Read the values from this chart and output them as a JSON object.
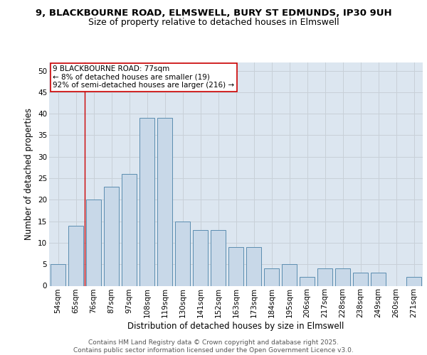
{
  "title1": "9, BLACKBOURNE ROAD, ELMSWELL, BURY ST EDMUNDS, IP30 9UH",
  "title2": "Size of property relative to detached houses in Elmswell",
  "xlabel": "Distribution of detached houses by size in Elmswell",
  "ylabel": "Number of detached properties",
  "categories": [
    "54sqm",
    "65sqm",
    "76sqm",
    "87sqm",
    "97sqm",
    "108sqm",
    "119sqm",
    "130sqm",
    "141sqm",
    "152sqm",
    "163sqm",
    "173sqm",
    "184sqm",
    "195sqm",
    "206sqm",
    "217sqm",
    "228sqm",
    "238sqm",
    "249sqm",
    "260sqm",
    "271sqm"
  ],
  "values": [
    5,
    14,
    20,
    23,
    26,
    39,
    39,
    15,
    13,
    13,
    9,
    9,
    4,
    5,
    2,
    4,
    4,
    3,
    3,
    0,
    2
  ],
  "bar_color": "#c8d8e8",
  "bar_edge_color": "#5b8db0",
  "vline_color": "#cc0000",
  "annotation_line1": "9 BLACKBOURNE ROAD: 77sqm",
  "annotation_line2": "← 8% of detached houses are smaller (19)",
  "annotation_line3": "92% of semi-detached houses are larger (216) →",
  "annotation_box_color": "#ffffff",
  "annotation_box_edge": "#cc0000",
  "ylim": [
    0,
    52
  ],
  "yticks": [
    0,
    5,
    10,
    15,
    20,
    25,
    30,
    35,
    40,
    45,
    50
  ],
  "grid_color": "#c8d0d8",
  "bg_color": "#dce6f0",
  "footer": "Contains HM Land Registry data © Crown copyright and database right 2025.\nContains public sector information licensed under the Open Government Licence v3.0.",
  "title1_fontsize": 9.5,
  "title2_fontsize": 9,
  "axis_label_fontsize": 8.5,
  "tick_fontsize": 7.5,
  "annotation_fontsize": 7.5,
  "footer_fontsize": 6.5
}
